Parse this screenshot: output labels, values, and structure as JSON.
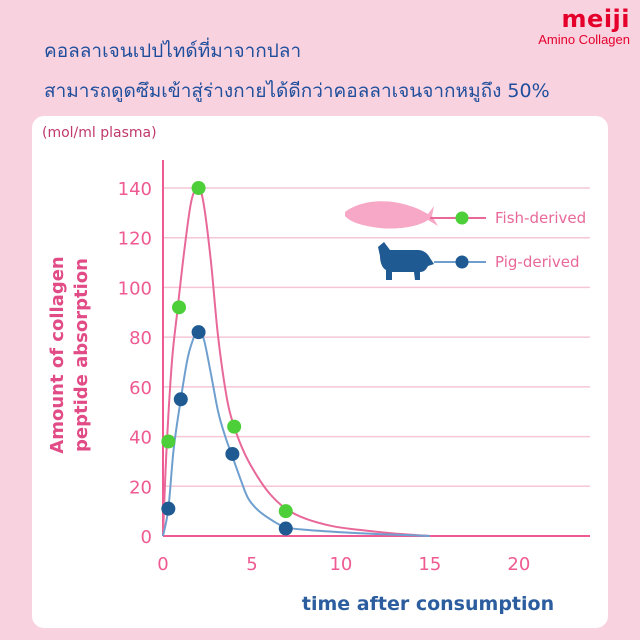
{
  "brand": {
    "name": "meiji",
    "subtitle": "Amino Collagen"
  },
  "headline": {
    "line1": "คอลลาเจนเปปไทด์ที่มาจากปลา",
    "line2": "สามารถดูดซึมเข้าสู่ร่างกายได้ดีกว่าคอลลาเจนจากหมูถึง 50%"
  },
  "colors": {
    "fish": "#e8689a",
    "fish_point": "#4ccf39",
    "pig": "#6f9fcf",
    "pig_point": "#1f5a93"
  },
  "chart_data": {
    "type": "line",
    "unit_label": "(mol/ml plasma)",
    "ylabel_line1": "Amount of collagen",
    "ylabel_line2": "peptide absorption",
    "xlabel": "time after consumption",
    "xlim": [
      0,
      24
    ],
    "ylim": [
      0,
      150
    ],
    "xticks": [
      0,
      5,
      10,
      15,
      20
    ],
    "yticks": [
      0,
      20,
      40,
      60,
      80,
      100,
      120,
      140
    ],
    "grid": true,
    "legend_position": "top-right",
    "series": [
      {
        "name": "Fish-derived",
        "icon": "fish-icon",
        "points": [
          [
            0.3,
            38
          ],
          [
            0.9,
            92
          ],
          [
            2.0,
            140
          ],
          [
            4.0,
            44
          ],
          [
            6.9,
            10
          ]
        ],
        "curve": [
          [
            0,
            0
          ],
          [
            0.2,
            35
          ],
          [
            0.5,
            70
          ],
          [
            0.8,
            90
          ],
          [
            1.2,
            115
          ],
          [
            1.6,
            135
          ],
          [
            2.0,
            140
          ],
          [
            2.3,
            133
          ],
          [
            2.7,
            110
          ],
          [
            3.1,
            80
          ],
          [
            3.6,
            55
          ],
          [
            4.0,
            44
          ],
          [
            4.6,
            33
          ],
          [
            5.3,
            24
          ],
          [
            6.0,
            17
          ],
          [
            6.9,
            11
          ],
          [
            8.0,
            7
          ],
          [
            9.5,
            4
          ],
          [
            11,
            2.5
          ],
          [
            13,
            1
          ],
          [
            15,
            0
          ]
        ]
      },
      {
        "name": "Pig-derived",
        "icon": "pig-icon",
        "points": [
          [
            0.3,
            11
          ],
          [
            1.0,
            55
          ],
          [
            2.0,
            82
          ],
          [
            3.9,
            33
          ],
          [
            6.9,
            3
          ]
        ],
        "curve": [
          [
            0,
            0
          ],
          [
            0.3,
            11
          ],
          [
            0.6,
            35
          ],
          [
            1.0,
            55
          ],
          [
            1.4,
            72
          ],
          [
            1.8,
            81
          ],
          [
            2.0,
            82
          ],
          [
            2.3,
            79
          ],
          [
            2.7,
            65
          ],
          [
            3.1,
            50
          ],
          [
            3.5,
            40
          ],
          [
            3.9,
            32
          ],
          [
            4.4,
            22
          ],
          [
            4.8,
            15
          ],
          [
            5.4,
            10
          ],
          [
            6.2,
            6
          ],
          [
            6.9,
            3.5
          ],
          [
            8,
            2.5
          ],
          [
            10,
            1.5
          ],
          [
            12,
            0.8
          ],
          [
            14,
            0.3
          ],
          [
            15,
            0
          ]
        ]
      }
    ]
  }
}
